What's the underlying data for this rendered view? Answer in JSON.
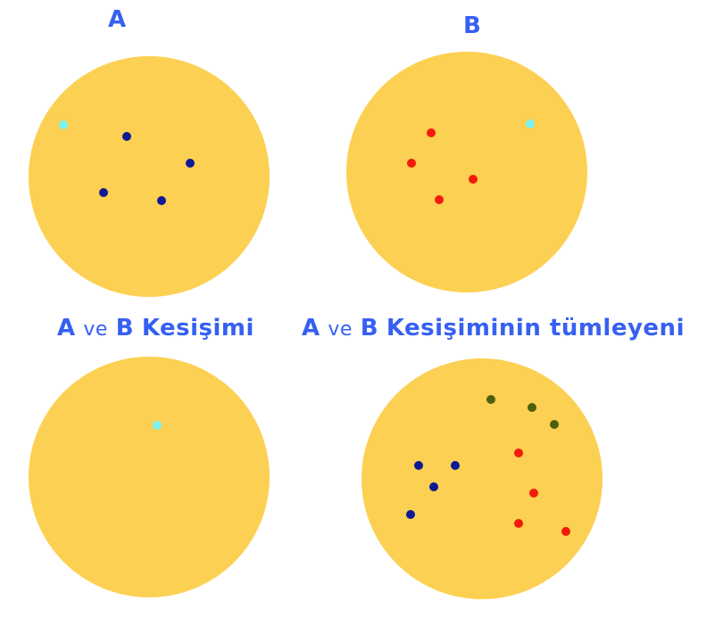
{
  "colors": {
    "title": "#3660f2",
    "circle": "#fcd052",
    "point_a": "#0e1a94",
    "point_b": "#f21b0c",
    "point_common": "#7ef2f0",
    "point_outside": "#4d5f0a"
  },
  "titles": {
    "a": "A",
    "b": "B",
    "intersection": {
      "a": "A",
      "ve": "ve",
      "b": "B",
      "rest": "Kesişimi"
    },
    "complement": {
      "a": "A",
      "ve": "ve",
      "b": "B",
      "rest": "Kesişiminin tümleyeni"
    }
  }
}
